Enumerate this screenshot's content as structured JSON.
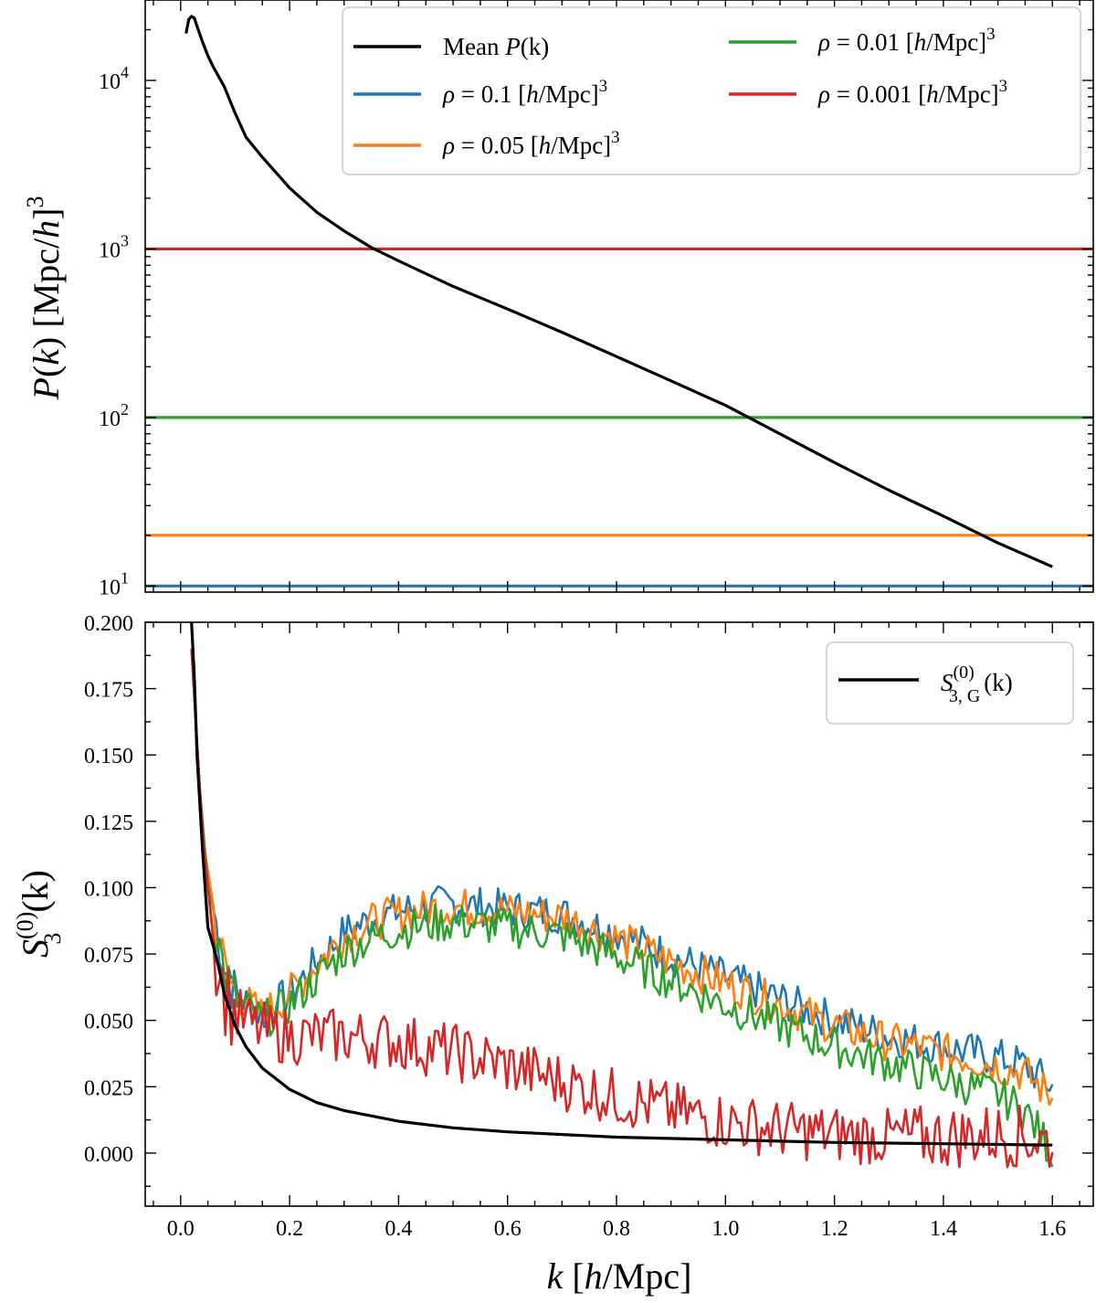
{
  "chart_data": [
    {
      "type": "line",
      "panel": "top",
      "yscale": "log",
      "ylabel": {
        "p": "P",
        "k": "k",
        "unit": " [Mpc/",
        "h": "h",
        "close": "]",
        "exp": "3"
      },
      "ylim": [
        9.2,
        30000
      ],
      "xlim": [
        -0.065,
        1.675
      ],
      "yticks": [
        {
          "base": "10",
          "exp": "1",
          "value": 10
        },
        {
          "base": "10",
          "exp": "2",
          "value": 100
        },
        {
          "base": "10",
          "exp": "3",
          "value": 1000
        },
        {
          "base": "10",
          "exp": "4",
          "value": 10000
        }
      ],
      "legend": {
        "position": "top-right",
        "entries": [
          {
            "key": "mean",
            "color": "#000000",
            "pre": "Mean ",
            "sym": "P",
            "arg": "(k)"
          },
          {
            "key": "rho_0.1",
            "color": "#1f77b4",
            "rho": "ρ",
            "val": " = 0.1 [",
            "h": "h",
            "unit": "/Mpc]",
            "exp": "3"
          },
          {
            "key": "rho_0.05",
            "color": "#ff7f0e",
            "rho": "ρ",
            "val": " = 0.05 [",
            "h": "h",
            "unit": "/Mpc]",
            "exp": "3"
          },
          {
            "key": "rho_0.01",
            "color": "#2ca02c",
            "rho": "ρ",
            "val": " = 0.01 [",
            "h": "h",
            "unit": "/Mpc]",
            "exp": "3"
          },
          {
            "key": "rho_0.001",
            "color": "#d62728",
            "rho": "ρ",
            "val": " = 0.001 [",
            "h": "h",
            "unit": "/Mpc]",
            "exp": "3"
          }
        ]
      },
      "hlines": [
        {
          "name": "rho_0.1",
          "value": 10,
          "color": "#1f77b4"
        },
        {
          "name": "rho_0.05",
          "value": 20,
          "color": "#ff7f0e"
        },
        {
          "name": "rho_0.01",
          "value": 100,
          "color": "#2ca02c"
        },
        {
          "name": "rho_0.001",
          "value": 1000,
          "color": "#d62728"
        }
      ],
      "series": [
        {
          "name": "Mean P(k)",
          "color": "#000000",
          "x": [
            0.01,
            0.015,
            0.02,
            0.025,
            0.03,
            0.04,
            0.05,
            0.06,
            0.08,
            0.1,
            0.12,
            0.15,
            0.2,
            0.25,
            0.3,
            0.35,
            0.4,
            0.5,
            0.6,
            0.7,
            0.8,
            0.9,
            1.0,
            1.1,
            1.2,
            1.3,
            1.4,
            1.5,
            1.6
          ],
          "y": [
            19000,
            23000,
            24000,
            23500,
            21000,
            17000,
            14000,
            12000,
            9200,
            6400,
            4600,
            3500,
            2300,
            1650,
            1280,
            1020,
            850,
            600,
            440,
            320,
            230,
            165,
            118,
            80,
            54,
            37,
            26,
            18,
            13
          ]
        }
      ]
    },
    {
      "type": "line",
      "panel": "bottom",
      "ylabel": {
        "s": "S",
        "sup": "(0)",
        "sub": "3",
        "arg": "(k)"
      },
      "xlabel": {
        "k": "k",
        "open": " [",
        "h": "h",
        "unit": "/Mpc]"
      },
      "xlim": [
        -0.065,
        1.675
      ],
      "ylim": [
        -0.02,
        0.2
      ],
      "xticks": [
        "0.0",
        "0.2",
        "0.4",
        "0.6",
        "0.8",
        "1.0",
        "1.2",
        "1.4",
        "1.6"
      ],
      "yticks": [
        "0.000",
        "0.025",
        "0.050",
        "0.075",
        "0.100",
        "0.125",
        "0.150",
        "0.175",
        "0.200"
      ],
      "legend": {
        "position": "top-right",
        "entries": [
          {
            "key": "s3g",
            "color": "#000000",
            "s": "S",
            "sup": "(0)",
            "sub": "3, G",
            "arg": "(k)"
          }
        ]
      },
      "series": [
        {
          "name": "S3G(0)(k)",
          "color": "#000000",
          "x": [
            0.02,
            0.025,
            0.03,
            0.04,
            0.05,
            0.06,
            0.07,
            0.08,
            0.1,
            0.12,
            0.15,
            0.2,
            0.25,
            0.3,
            0.4,
            0.5,
            0.6,
            0.8,
            1.0,
            1.2,
            1.4,
            1.6
          ],
          "y": [
            0.2,
            0.18,
            0.15,
            0.115,
            0.085,
            0.078,
            0.07,
            0.06,
            0.048,
            0.04,
            0.032,
            0.024,
            0.019,
            0.016,
            0.012,
            0.0095,
            0.008,
            0.006,
            0.005,
            0.004,
            0.0035,
            0.003
          ]
        },
        {
          "name": "rho=0.1",
          "color": "#1f77b4",
          "x": [
            0.02,
            0.04,
            0.06,
            0.08,
            0.1,
            0.15,
            0.2,
            0.25,
            0.3,
            0.35,
            0.4,
            0.45,
            0.5,
            0.6,
            0.7,
            0.8,
            0.9,
            1.0,
            1.1,
            1.2,
            1.3,
            1.4,
            1.5,
            1.55,
            1.6
          ],
          "y": [
            0.19,
            0.12,
            0.092,
            0.07,
            0.06,
            0.052,
            0.06,
            0.072,
            0.083,
            0.088,
            0.091,
            0.093,
            0.094,
            0.092,
            0.09,
            0.083,
            0.074,
            0.066,
            0.058,
            0.05,
            0.044,
            0.04,
            0.036,
            0.033,
            0.025
          ]
        },
        {
          "name": "rho=0.05",
          "color": "#ff7f0e",
          "x": [
            0.02,
            0.04,
            0.06,
            0.08,
            0.1,
            0.15,
            0.2,
            0.25,
            0.3,
            0.35,
            0.4,
            0.45,
            0.5,
            0.6,
            0.7,
            0.8,
            0.9,
            1.0,
            1.1,
            1.2,
            1.3,
            1.4,
            1.5,
            1.55,
            1.6
          ],
          "y": [
            0.19,
            0.12,
            0.092,
            0.07,
            0.06,
            0.052,
            0.06,
            0.071,
            0.082,
            0.087,
            0.09,
            0.092,
            0.093,
            0.091,
            0.089,
            0.081,
            0.072,
            0.064,
            0.056,
            0.048,
            0.042,
            0.038,
            0.033,
            0.03,
            0.021
          ]
        },
        {
          "name": "rho=0.01",
          "color": "#2ca02c",
          "x": [
            0.02,
            0.04,
            0.06,
            0.08,
            0.1,
            0.15,
            0.2,
            0.25,
            0.3,
            0.35,
            0.4,
            0.45,
            0.5,
            0.6,
            0.7,
            0.8,
            0.9,
            1.0,
            1.1,
            1.2,
            1.3,
            1.4,
            1.5,
            1.55,
            1.6
          ],
          "y": [
            0.19,
            0.12,
            0.09,
            0.068,
            0.058,
            0.05,
            0.056,
            0.066,
            0.076,
            0.081,
            0.084,
            0.086,
            0.087,
            0.085,
            0.082,
            0.074,
            0.065,
            0.056,
            0.048,
            0.04,
            0.034,
            0.028,
            0.022,
            0.016,
            0.0
          ]
        },
        {
          "name": "rho=0.001",
          "color": "#d62728",
          "x": [
            0.02,
            0.04,
            0.06,
            0.08,
            0.1,
            0.15,
            0.2,
            0.25,
            0.3,
            0.35,
            0.4,
            0.45,
            0.5,
            0.6,
            0.7,
            0.8,
            0.9,
            1.0,
            1.1,
            1.2,
            1.3,
            1.4,
            1.5,
            1.55,
            1.6
          ],
          "y": [
            0.19,
            0.12,
            0.08,
            0.06,
            0.052,
            0.046,
            0.044,
            0.044,
            0.044,
            0.043,
            0.042,
            0.04,
            0.038,
            0.033,
            0.027,
            0.021,
            0.016,
            0.012,
            0.009,
            0.007,
            0.006,
            0.006,
            0.007,
            0.006,
            0.004
          ]
        }
      ]
    }
  ]
}
